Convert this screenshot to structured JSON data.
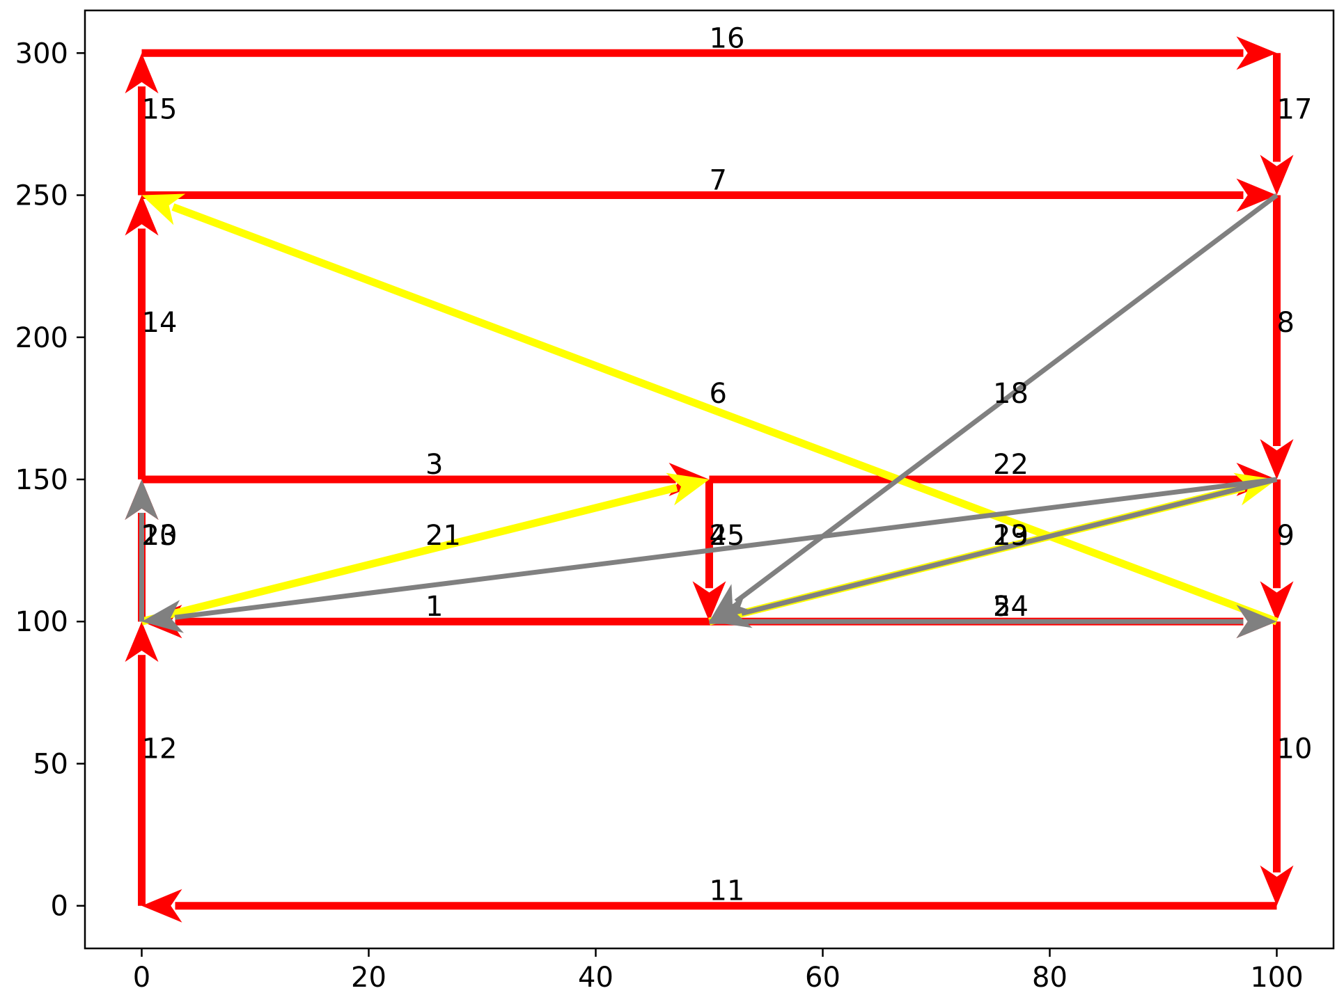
{
  "chart_data": {
    "type": "line",
    "title": "",
    "xlabel": "",
    "ylabel": "",
    "xlim": [
      -5,
      105
    ],
    "ylim": [
      -15,
      315
    ],
    "grid": false,
    "x_ticks": [
      0,
      20,
      40,
      60,
      80,
      100
    ],
    "y_ticks": [
      0,
      50,
      100,
      150,
      200,
      250,
      300
    ],
    "x_tick_labels": [
      "0",
      "20",
      "40",
      "60",
      "80",
      "100"
    ],
    "y_tick_labels": [
      "0",
      "50",
      "100",
      "150",
      "200",
      "250",
      "300"
    ],
    "colors": {
      "red": "#ff0000",
      "yellow": "#ffff00",
      "gray": "#808080",
      "axis": "#000000"
    },
    "edges": [
      {
        "label": "1",
        "from": [
          50,
          100
        ],
        "to": [
          0,
          100
        ],
        "color": "red"
      },
      {
        "label": "2",
        "from": [
          0,
          100
        ],
        "to": [
          0,
          150
        ],
        "color": "red"
      },
      {
        "label": "3",
        "from": [
          0,
          150
        ],
        "to": [
          50,
          150
        ],
        "color": "red"
      },
      {
        "label": "4",
        "from": [
          50,
          150
        ],
        "to": [
          50,
          100
        ],
        "color": "red"
      },
      {
        "label": "5",
        "from": [
          50,
          100
        ],
        "to": [
          100,
          100
        ],
        "color": "red"
      },
      {
        "label": "6",
        "from": [
          100,
          100
        ],
        "to": [
          0,
          250
        ],
        "color": "yellow"
      },
      {
        "label": "7",
        "from": [
          0,
          250
        ],
        "to": [
          100,
          250
        ],
        "color": "red"
      },
      {
        "label": "8",
        "from": [
          100,
          250
        ],
        "to": [
          100,
          150
        ],
        "color": "red"
      },
      {
        "label": "9",
        "from": [
          100,
          150
        ],
        "to": [
          100,
          100
        ],
        "color": "red"
      },
      {
        "label": "10",
        "from": [
          100,
          100
        ],
        "to": [
          100,
          0
        ],
        "color": "red"
      },
      {
        "label": "11",
        "from": [
          100,
          0
        ],
        "to": [
          0,
          0
        ],
        "color": "red"
      },
      {
        "label": "12",
        "from": [
          0,
          0
        ],
        "to": [
          0,
          100
        ],
        "color": "red"
      },
      {
        "label": "13",
        "from": [
          0,
          100
        ],
        "to": [
          0,
          150
        ],
        "color": "red"
      },
      {
        "label": "14",
        "from": [
          0,
          150
        ],
        "to": [
          0,
          250
        ],
        "color": "red"
      },
      {
        "label": "15",
        "from": [
          0,
          250
        ],
        "to": [
          0,
          300
        ],
        "color": "red"
      },
      {
        "label": "16",
        "from": [
          0,
          300
        ],
        "to": [
          100,
          300
        ],
        "color": "red"
      },
      {
        "label": "17",
        "from": [
          100,
          300
        ],
        "to": [
          100,
          250
        ],
        "color": "red"
      },
      {
        "label": "18",
        "from": [
          100,
          250
        ],
        "to": [
          50,
          100
        ],
        "color": "gray"
      },
      {
        "label": "19",
        "from": [
          50,
          100
        ],
        "to": [
          100,
          150
        ],
        "color": "yellow"
      },
      {
        "label": "20",
        "from": [
          0,
          100
        ],
        "to": [
          0,
          150
        ],
        "color": "gray"
      },
      {
        "label": "21",
        "from": [
          0,
          100
        ],
        "to": [
          50,
          150
        ],
        "color": "yellow"
      },
      {
        "label": "22",
        "from": [
          50,
          150
        ],
        "to": [
          100,
          150
        ],
        "color": "red"
      },
      {
        "label": "23",
        "from": [
          100,
          150
        ],
        "to": [
          50,
          100
        ],
        "color": "gray"
      },
      {
        "label": "24",
        "from": [
          50,
          100
        ],
        "to": [
          100,
          100
        ],
        "color": "gray"
      },
      {
        "label": "25",
        "from": [
          100,
          150
        ],
        "to": [
          0,
          100
        ],
        "color": "gray"
      }
    ]
  }
}
